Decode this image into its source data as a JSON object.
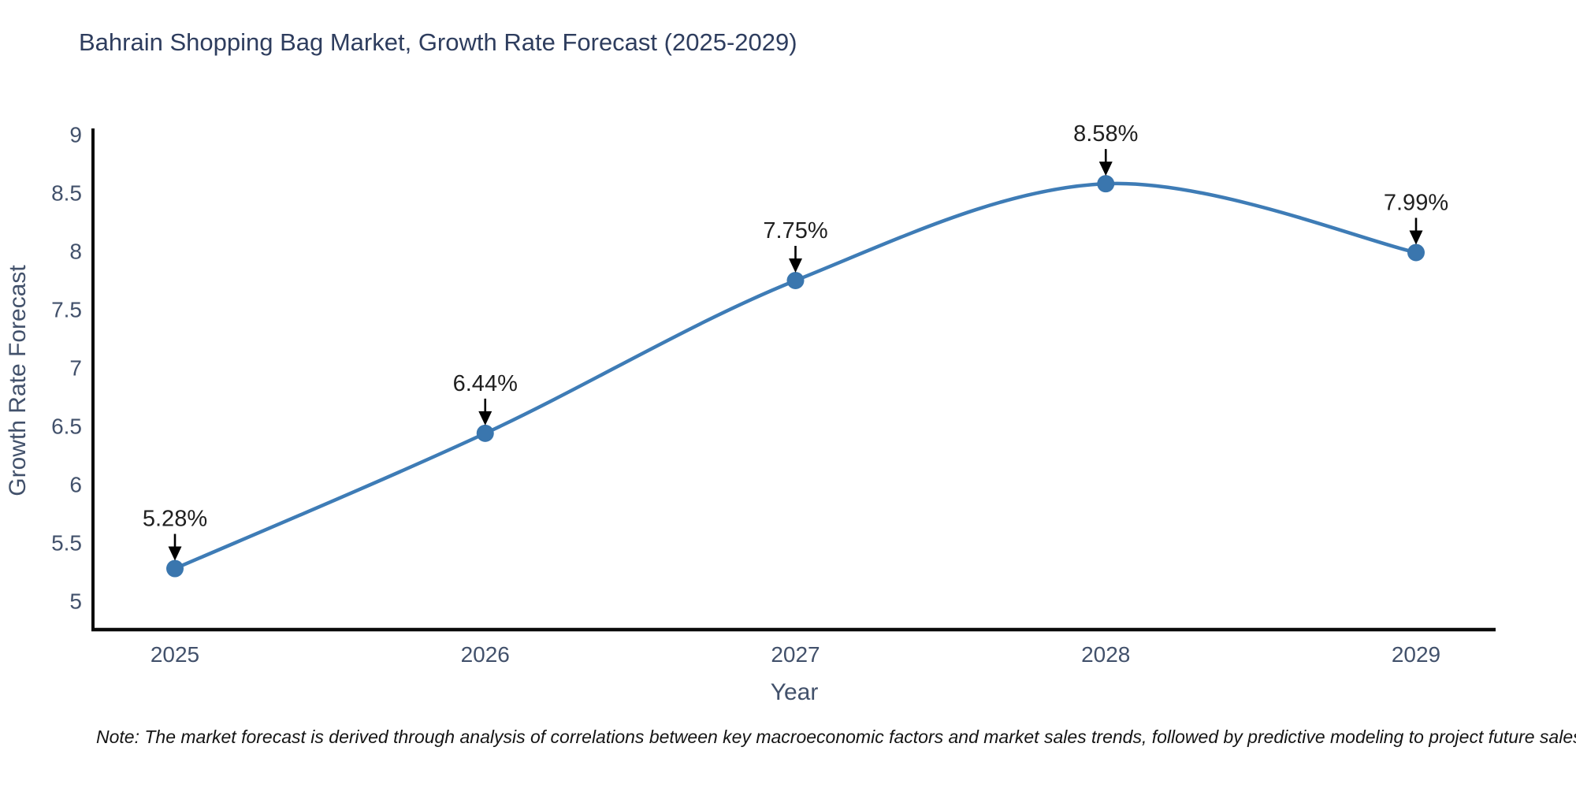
{
  "title": "Bahrain Shopping Bag Market, Growth Rate Forecast (2025-2029)",
  "note": "Note: The market forecast is derived through analysis of correlations between key macroeconomic factors and market sales trends, followed by predictive modeling to project future sales",
  "chart_data": {
    "type": "line",
    "title": "Bahrain Shopping Bag Market, Growth Rate Forecast (2025-2029)",
    "x": [
      2025,
      2026,
      2027,
      2028,
      2029
    ],
    "series": [
      {
        "name": "Growth Rate Forecast",
        "values": [
          5.28,
          6.44,
          7.75,
          8.58,
          7.99
        ]
      }
    ],
    "point_labels": [
      "5.28%",
      "6.44%",
      "7.75%",
      "8.58%",
      "7.99%"
    ],
    "xlabel": "Year",
    "ylabel": "Growth Rate Forecast",
    "yticks": [
      5,
      5.5,
      6,
      6.5,
      7,
      7.5,
      8,
      8.5,
      9
    ],
    "ylim": [
      4.75,
      9.0
    ],
    "grid": false,
    "legend": "none",
    "line_shape": "spline",
    "colors": {
      "line": "#3e7cb6",
      "marker": "#3a76ae",
      "arrow": "#000000",
      "axis_line": "#0a0a0a",
      "tick_text": "#42516b",
      "axis_title_text": "#42516b",
      "annotation_text": "#1f1f1f"
    }
  }
}
